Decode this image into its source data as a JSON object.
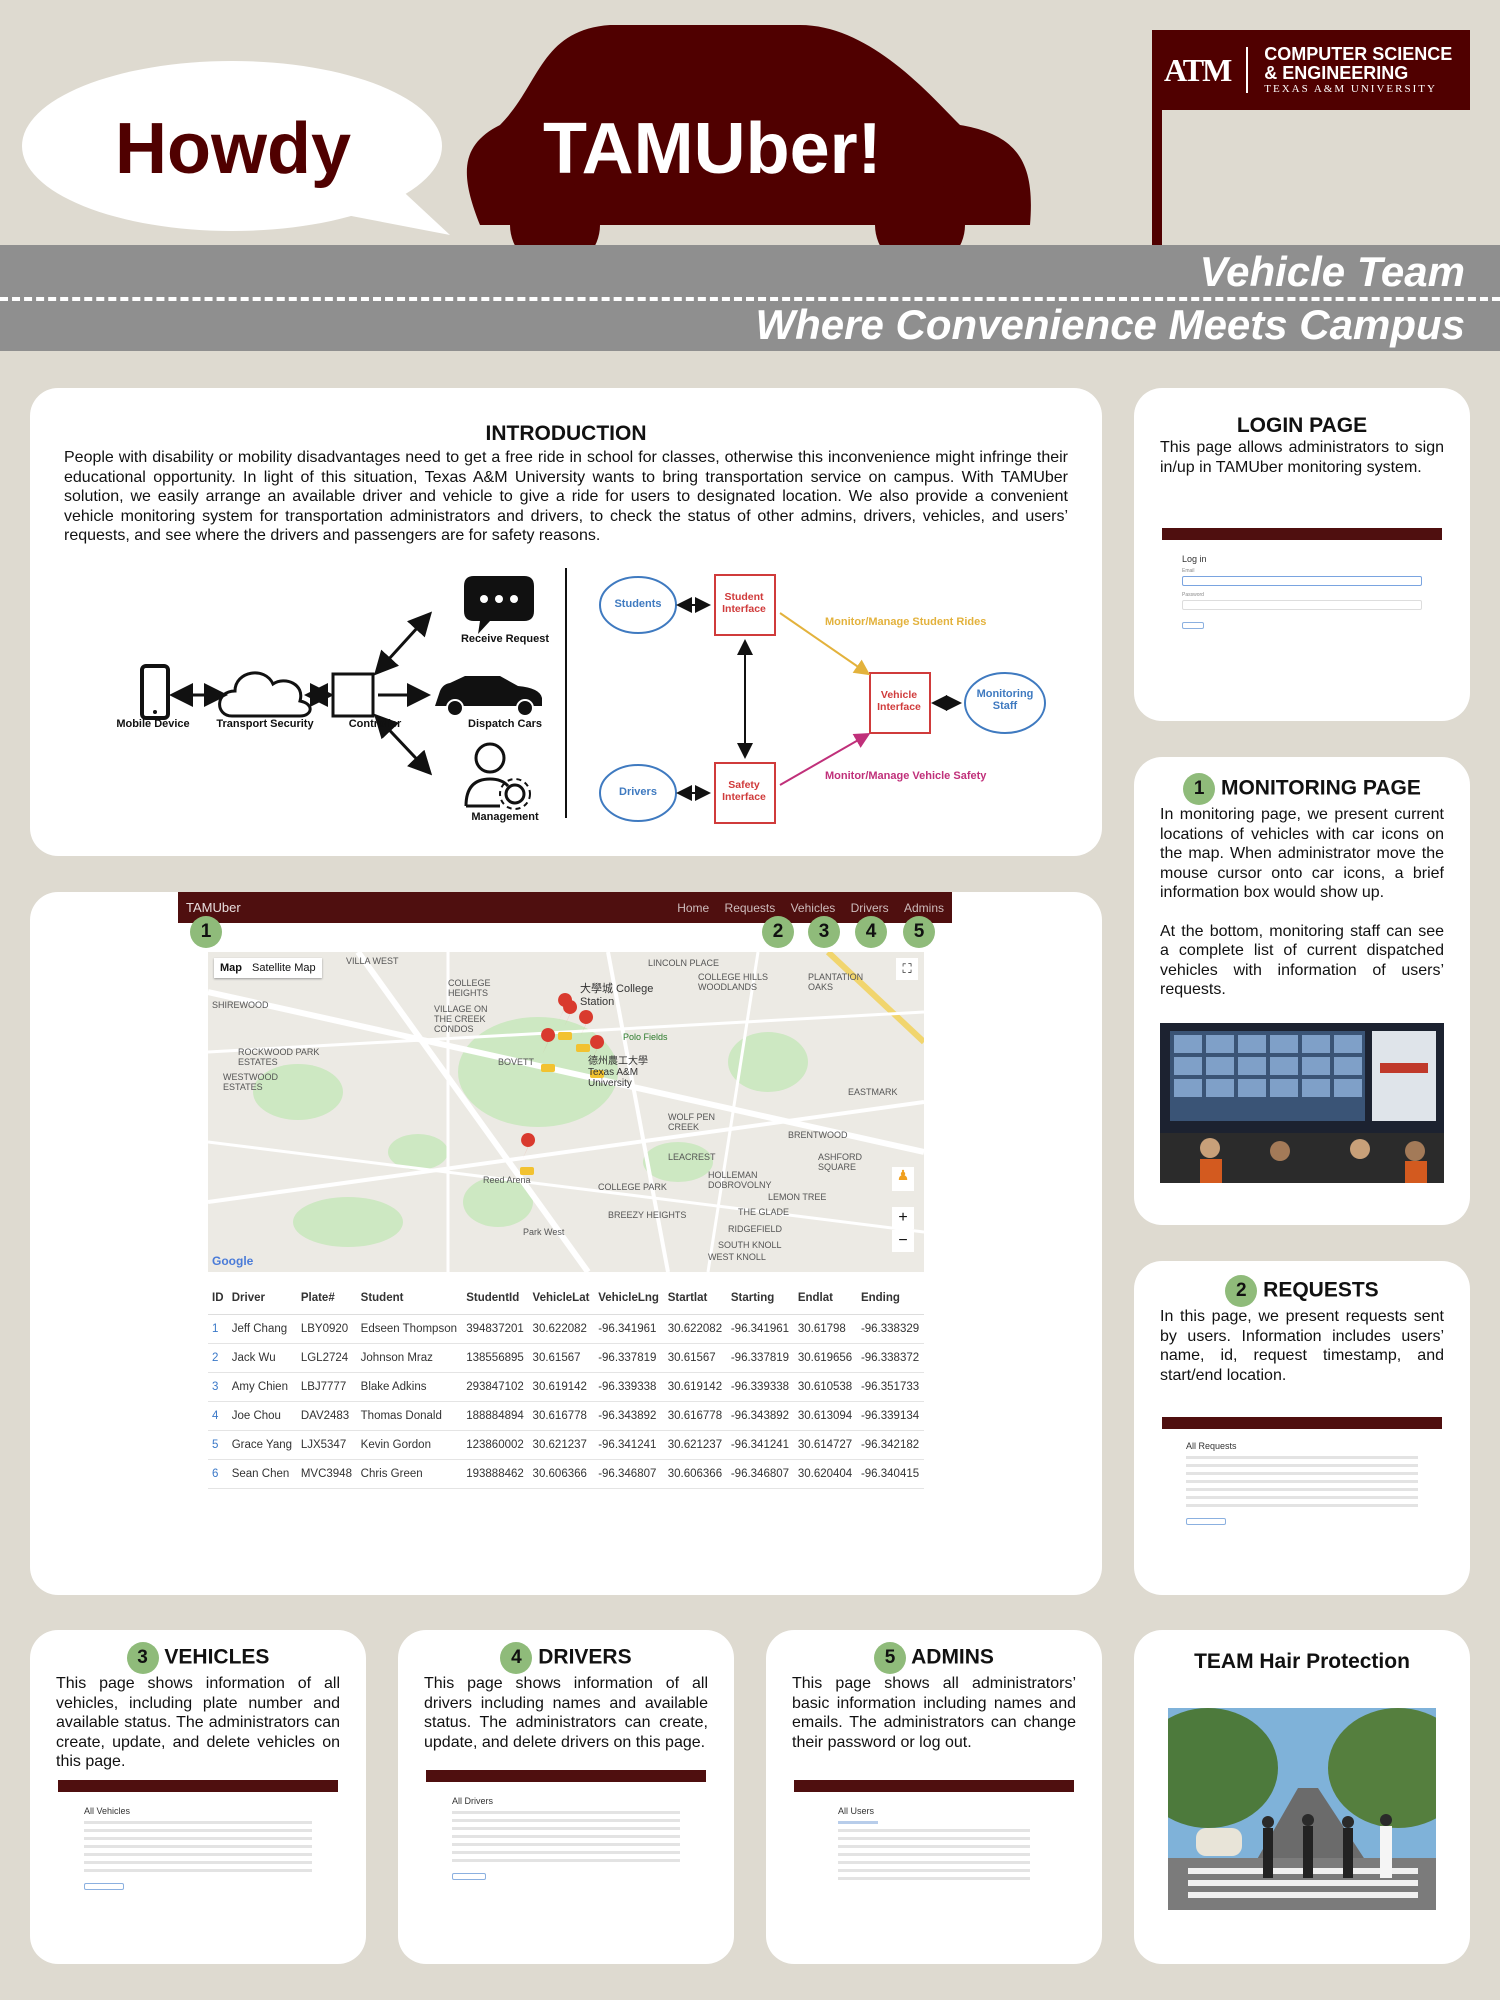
{
  "header": {
    "howdy": "Howdy",
    "app_name": "TAMUber!",
    "team": "Vehicle Team",
    "tagline": "Where Convenience Meets Campus",
    "logo": {
      "mark": "ATM",
      "line1": "COMPUTER SCIENCE",
      "line2": "& ENGINEERING",
      "line3": "TEXAS A&M UNIVERSITY"
    }
  },
  "intro": {
    "title": "INTRODUCTION",
    "text": "People with disability or mobility disadvantages need to get a free ride in school for classes, otherwise this inconvenience might infringe their educational opportunity. In light of this situation, Texas A&M University wants to bring transportation service on campus. With TAMUber solution, we easily arrange an available driver and vehicle to give a ride for users to designated location. We also provide a convenient vehicle monitoring system for transportation administrators and drivers, to check the status of other admins, drivers, vehicles, and users’ requests, and see where the drivers and passengers are for safety reasons.",
    "diagram_left": {
      "mobile": "Mobile Device",
      "cloud": "Transport Security",
      "controller": "Controller",
      "receive": "Receive Request",
      "dispatch": "Dispatch Cars",
      "management": "Management"
    },
    "diagram_right": {
      "students": "Students",
      "drivers": "Drivers",
      "student_iface": "Student Interface",
      "safety_iface": "Safety Interface",
      "vehicle_iface": "Vehicle Interface",
      "staff": "Monitoring Staff",
      "arrow_top": "Monitor/Manage Student Rides",
      "arrow_bottom": "Monitor/Manage Vehicle Safety"
    }
  },
  "monitor_screen": {
    "brand": "TAMUber",
    "nav": [
      "Home",
      "Requests",
      "Vehicles",
      "Drivers",
      "Admins"
    ],
    "badges": [
      "1",
      "2",
      "3",
      "4",
      "5"
    ],
    "map_tabs": [
      "Map",
      "Satellite Map"
    ],
    "map_labels": [
      "VILLA WEST",
      "LINCOLN PLACE",
      "COLLEGE HILLS WOODLANDS",
      "PLANTATION OAKS",
      "大學城 College Station",
      "COLLEGE HEIGHTS",
      "VILLAGE ON THE CREEK CONDOS",
      "SHIREWOOD",
      "ROCKWOOD PARK ESTATES",
      "WESTWOOD ESTATES",
      "BOVETT",
      "Polo Fields",
      "德州農工大學 Texas A&M University",
      "EASTMARK",
      "WOLF PEN CREEK",
      "BRENTWOOD",
      "LEACREST",
      "ASHFORD SQUARE",
      "COLLEGE PARK",
      "HOLLEMAN DOBROVOLNY",
      "LEMON TREE",
      "THE GLADE",
      "BREEZY HEIGHTS",
      "RIDGEFIELD",
      "SOUTH KNOLL",
      "WEST KNOLL",
      "Reed Arena",
      "Park West",
      "Google"
    ],
    "table_headers": [
      "ID",
      "Driver",
      "Plate#",
      "Student",
      "StudentId",
      "VehicleLat",
      "VehicleLng",
      "Startlat",
      "Starting",
      "Endlat",
      "Ending"
    ],
    "rows": [
      [
        "1",
        "Jeff Chang",
        "LBY0920",
        "Edseen Thompson",
        "394837201",
        "30.622082",
        "-96.341961",
        "30.622082",
        "-96.341961",
        "30.61798",
        "-96.338329"
      ],
      [
        "2",
        "Jack Wu",
        "LGL2724",
        "Johnson Mraz",
        "138556895",
        "30.61567",
        "-96.337819",
        "30.61567",
        "-96.337819",
        "30.619656",
        "-96.338372"
      ],
      [
        "3",
        "Amy Chien",
        "LBJ7777",
        "Blake Adkins",
        "293847102",
        "30.619142",
        "-96.339338",
        "30.619142",
        "-96.339338",
        "30.610538",
        "-96.351733"
      ],
      [
        "4",
        "Joe Chou",
        "DAV2483",
        "Thomas Donald",
        "188884894",
        "30.616778",
        "-96.343892",
        "30.616778",
        "-96.343892",
        "30.613094",
        "-96.339134"
      ],
      [
        "5",
        "Grace Yang",
        "LJX5347",
        "Kevin Gordon",
        "123860002",
        "30.621237",
        "-96.341241",
        "30.621237",
        "-96.341241",
        "30.614727",
        "-96.342182"
      ],
      [
        "6",
        "Sean Chen",
        "MVC3948",
        "Chris Green",
        "193888462",
        "30.606366",
        "-96.346807",
        "30.606366",
        "-96.346807",
        "30.620404",
        "-96.340415"
      ]
    ]
  },
  "login": {
    "title": "LOGIN PAGE",
    "text": "This page allows administrators to sign in/up in TAMUber monitoring system.",
    "shot_title": "Log in"
  },
  "monitoring": {
    "badge": "1",
    "title": "MONITORING PAGE",
    "text1": "In monitoring page, we present current locations of vehicles with car icons on the map. When administrator move the mouse cursor onto car icons, a brief information box would show up.",
    "text2": "At the bottom, monitoring staff can see a complete list of current dispatched vehicles with information of users’ requests."
  },
  "requests": {
    "badge": "2",
    "title": "REQUESTS",
    "text": "In this page, we present requests sent by users. Information includes users’ name, id, request timestamp, and start/end location.",
    "shot_title": "All Requests"
  },
  "vehicles": {
    "badge": "3",
    "title": "VEHICLES",
    "text": "This page shows information of all vehicles, including plate number and available status. The administrators can create, update, and delete vehicles on this page.",
    "shot_title": "All Vehicles"
  },
  "drivers": {
    "badge": "4",
    "title": "DRIVERS",
    "text": "This page shows information of all drivers including names and available status. The administrators can create, update, and delete drivers on this page.",
    "shot_title": "All Drivers"
  },
  "admins": {
    "badge": "5",
    "title": "ADMINS",
    "text": "This page shows all administrators’ basic information including names and emails. The administrators can change their password or log out.",
    "shot_title": "All Users"
  },
  "team": {
    "title": "TEAM Hair Protection"
  },
  "colors": {
    "maroon": "#500000",
    "bg": "#dedad0",
    "band": "#8f8f8f",
    "badge_green": "#8fbb7a"
  }
}
